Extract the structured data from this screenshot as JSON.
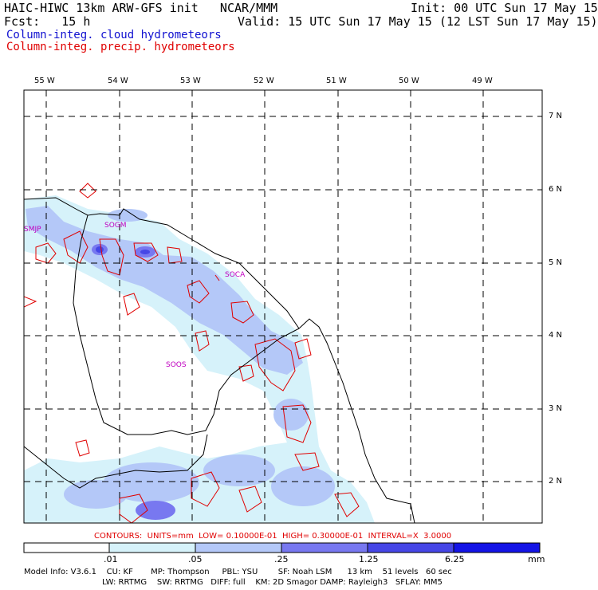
{
  "header": {
    "title_left": "HAIC-HIWC 13km ARW-GFS init   NCAR/MMM",
    "init": "Init: 00 UTC Sun 17 May 15",
    "fcst": "Fcst:   15 h",
    "valid": "Valid: 15 UTC Sun 17 May 15 (12 LST Sun 17 May 15)",
    "field_cloud": "Column-integ. cloud hydrometeors",
    "field_precip": "Column-integ. precip. hydrometeors",
    "colors": {
      "cloud": "#1010d0",
      "precip": "#e00000"
    }
  },
  "map": {
    "lon_labels": [
      "55 W",
      "54 W",
      "53 W",
      "52 W",
      "51 W",
      "50 W",
      "49 W"
    ],
    "lat_labels": [
      "7 N",
      "6 N",
      "5 N",
      "4 N",
      "3 N",
      "2 N"
    ],
    "stations": [
      "SMJP",
      "SOGM",
      "SOCA",
      "SOOS"
    ],
    "colors": {
      "coast": "#000000",
      "grid": "#000000",
      "station": "#c000c0",
      "contour": "#e00000"
    }
  },
  "contours_line": "CONTOURS:  UNITS=mm  LOW= 0.10000E-01  HIGH= 0.30000E-01  INTERVAL=X  3.0000",
  "colorbar": {
    "unit": "mm",
    "tick_labels": [
      ".01",
      ".05",
      ".25",
      "1.25",
      "6.25"
    ],
    "colors": [
      "#ffffff",
      "#d6f2fa",
      "#b4c8f8",
      "#7878f0",
      "#4646e6",
      "#1414e6"
    ]
  },
  "model_info": {
    "line1": "Model Info: V3.6.1    CU: KF       MP: Thompson     PBL: YSU        SF: Noah LSM      13 km    51 levels   60 sec",
    "line2": "LW: RRTMG    SW: RRTMG   DIFF: full    KM: 2D Smagor DAMP: Rayleigh3   SFLAY: MM5"
  }
}
